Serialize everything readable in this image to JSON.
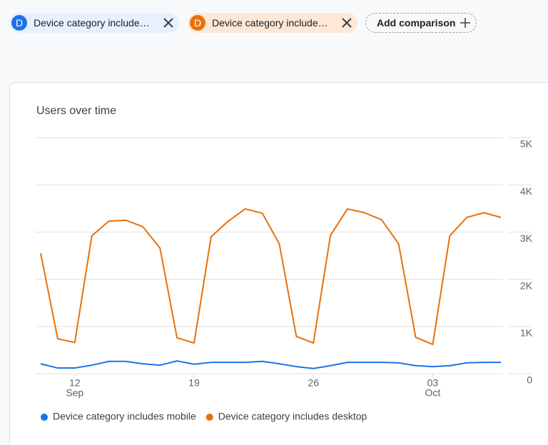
{
  "filters": [
    {
      "avatar": "D",
      "label": "Device category include…"
    },
    {
      "avatar": "D",
      "label": "Device category include…"
    }
  ],
  "add_comparison": "Add comparison",
  "chart_data": {
    "type": "line",
    "title": "Users over time",
    "categories": [
      null,
      null,
      "12",
      null,
      null,
      null,
      null,
      null,
      null,
      "19",
      null,
      null,
      null,
      null,
      null,
      null,
      "26",
      null,
      null,
      null,
      null,
      null,
      null,
      "03",
      null,
      null,
      null,
      null
    ],
    "category_months": [
      null,
      null,
      "Sep",
      null,
      null,
      null,
      null,
      null,
      null,
      null,
      null,
      null,
      null,
      null,
      null,
      null,
      null,
      null,
      null,
      null,
      null,
      null,
      null,
      "Oct",
      null,
      null,
      null,
      null
    ],
    "series": [
      {
        "name": "Device category includes mobile",
        "color": "#1a73e8",
        "values": [
          210,
          120,
          120,
          180,
          260,
          260,
          210,
          180,
          270,
          200,
          240,
          240,
          240,
          260,
          210,
          150,
          110,
          170,
          240,
          240,
          240,
          230,
          170,
          150,
          170,
          230,
          240,
          240
        ]
      },
      {
        "name": "Device category includes desktop",
        "color": "#e8710a",
        "values": [
          2550,
          740,
          660,
          2920,
          3230,
          3250,
          3110,
          2660,
          760,
          650,
          2900,
          3230,
          3490,
          3400,
          2750,
          790,
          650,
          2930,
          3490,
          3410,
          3260,
          2750,
          770,
          620,
          2920,
          3310,
          3410,
          3310
        ]
      }
    ],
    "ylim": [
      0,
      5000
    ],
    "yticks": [
      0,
      {
        "value": 1000,
        "label": "1K"
      },
      {
        "value": 2000,
        "label": "2K"
      },
      {
        "value": 3000,
        "label": "3K"
      },
      {
        "value": 4000,
        "label": "4K"
      },
      {
        "value": 5000,
        "label": "5K"
      }
    ],
    "grid": true
  }
}
